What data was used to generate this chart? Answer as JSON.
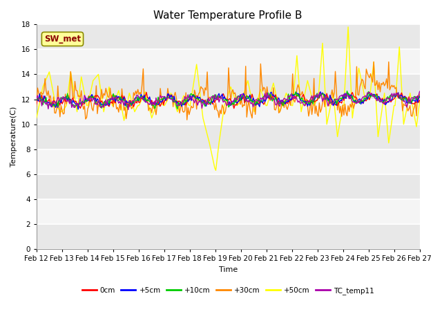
{
  "title": "Water Temperature Profile B",
  "xlabel": "Time",
  "ylabel": "Temperature(C)",
  "ylim": [
    0,
    18
  ],
  "yticks": [
    0,
    2,
    4,
    6,
    8,
    10,
    12,
    14,
    16,
    18
  ],
  "x_labels": [
    "Feb 12",
    "Feb 13",
    "Feb 14",
    "Feb 15",
    "Feb 16",
    "Feb 17",
    "Feb 18",
    "Feb 19",
    "Feb 20",
    "Feb 21",
    "Feb 22",
    "Feb 23",
    "Feb 24",
    "Feb 25",
    "Feb 26",
    "Feb 27"
  ],
  "annotation_text": "SW_met",
  "annotation_color": "#8B0000",
  "annotation_bg": "#FFFF99",
  "annotation_edge": "#8B8B00",
  "series_colors": {
    "0cm": "#FF0000",
    "+5cm": "#0000FF",
    "+10cm": "#00CC00",
    "+30cm": "#FF8800",
    "+50cm": "#FFFF00",
    "TC_temp11": "#AA00AA"
  },
  "line_widths": {
    "0cm": 1.0,
    "+5cm": 1.0,
    "+10cm": 1.0,
    "+30cm": 1.0,
    "+50cm": 1.0,
    "TC_temp11": 1.0
  },
  "plot_bg_color": "#F0F0F0",
  "band_colors": [
    "#E8E8E8",
    "#F8F8F8"
  ],
  "grid_color": "#FFFFFF",
  "title_fontsize": 11,
  "axis_fontsize": 8,
  "tick_fontsize": 7.5
}
